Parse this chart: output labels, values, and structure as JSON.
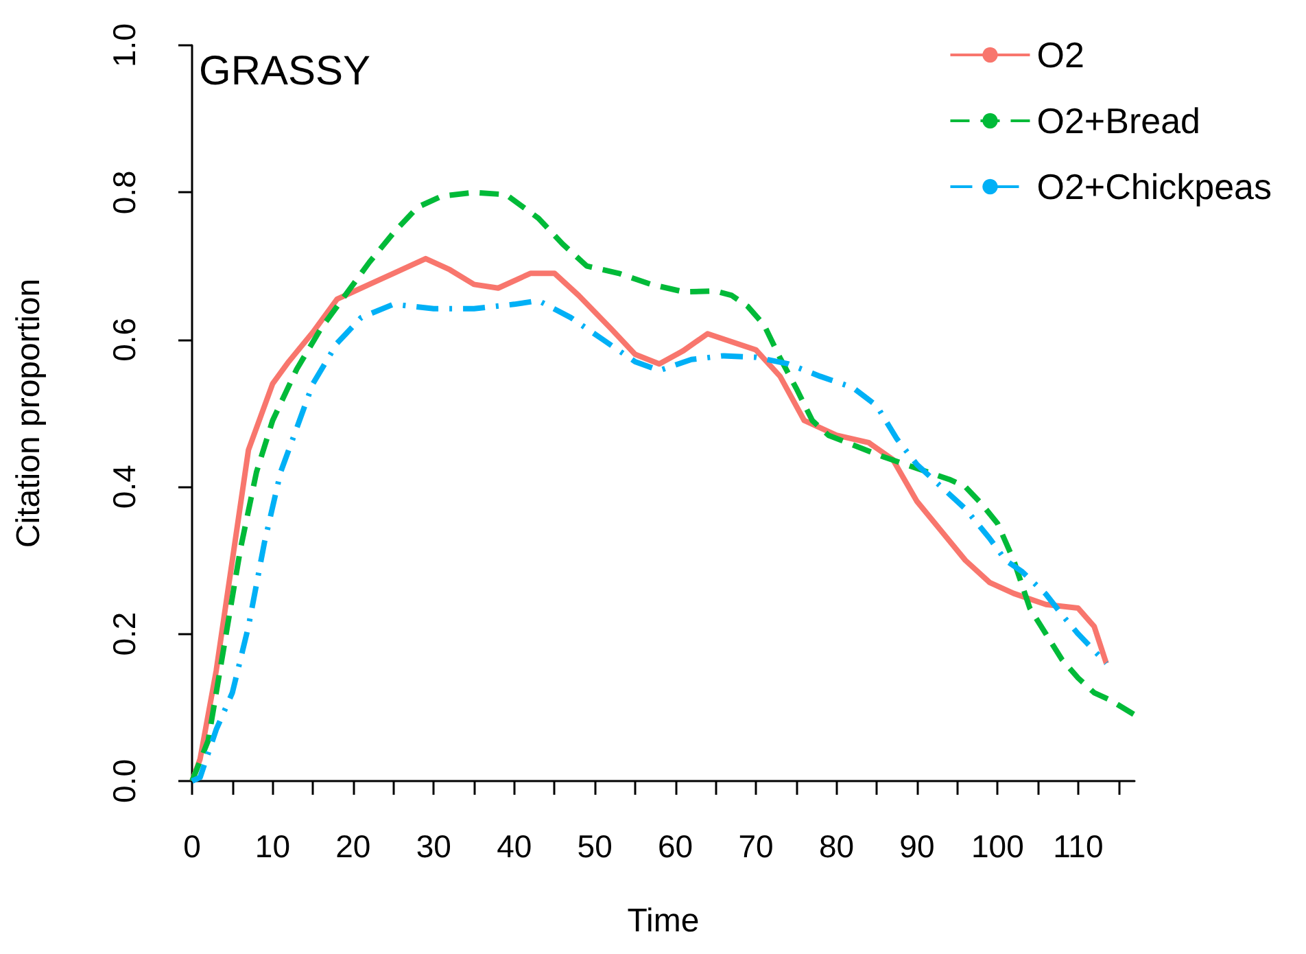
{
  "chart_data": {
    "type": "line",
    "title": "GRASSY",
    "xlabel": "Time",
    "ylabel": "Citation proportion",
    "xlim": [
      0,
      117
    ],
    "ylim": [
      0,
      1
    ],
    "xticks": [
      0,
      {
        "value": 5,
        "label": null
      },
      10,
      {
        "value": 15,
        "label": null
      },
      20,
      {
        "value": 25,
        "label": null
      },
      30,
      {
        "value": 35,
        "label": null
      },
      40,
      {
        "value": 45,
        "label": null
      },
      50,
      {
        "value": 55,
        "label": null
      },
      60,
      {
        "value": 65,
        "label": null
      },
      70,
      {
        "value": 75,
        "label": null
      },
      80,
      {
        "value": 85,
        "label": null
      },
      90,
      {
        "value": 95,
        "label": null
      },
      100,
      {
        "value": 105,
        "label": null
      },
      110,
      {
        "value": 115,
        "label": null
      }
    ],
    "yticks": [
      {
        "value": 0,
        "label": "0.0"
      },
      0.2,
      0.4,
      0.6,
      0.8,
      {
        "value": 1,
        "label": "1.0"
      }
    ],
    "grid": false,
    "legend": "top right",
    "marker": "none",
    "series": [
      {
        "name": "O2",
        "color": "#f8766d",
        "line_style": "solid",
        "x": [
          0,
          1,
          3,
          5,
          7,
          10,
          12,
          15,
          18,
          22,
          25,
          29,
          32,
          35,
          38,
          42,
          45,
          48,
          52,
          55,
          58,
          61,
          64,
          70,
          73,
          76,
          80,
          84,
          87,
          90,
          93,
          96,
          99,
          102,
          106,
          110,
          112,
          113.5
        ],
        "values": [
          0,
          0.03,
          0.15,
          0.3,
          0.45,
          0.54,
          0.57,
          0.61,
          0.655,
          0.675,
          0.69,
          0.71,
          0.695,
          0.675,
          0.67,
          0.69,
          0.69,
          0.66,
          0.615,
          0.58,
          0.567,
          0.585,
          0.608,
          0.586,
          0.55,
          0.49,
          0.47,
          0.46,
          0.437,
          0.38,
          0.34,
          0.3,
          0.27,
          0.255,
          0.24,
          0.235,
          0.21,
          0.16
        ]
      },
      {
        "name": "O2+Bread",
        "color": "#00ba38",
        "line_style": "dashed",
        "x": [
          0,
          2,
          4,
          6,
          8,
          10,
          13,
          16,
          19,
          22,
          25,
          28,
          31,
          35,
          39,
          43,
          46,
          49,
          53,
          57,
          61,
          65,
          67,
          69,
          71,
          73,
          75,
          77,
          79,
          82,
          86,
          90,
          94,
          96,
          98,
          100,
          102,
          104,
          106,
          108,
          110,
          112,
          114,
          117
        ],
        "values": [
          0,
          0.055,
          0.185,
          0.315,
          0.42,
          0.49,
          0.56,
          0.615,
          0.66,
          0.705,
          0.745,
          0.78,
          0.795,
          0.8,
          0.797,
          0.765,
          0.73,
          0.7,
          0.69,
          0.675,
          0.665,
          0.666,
          0.66,
          0.645,
          0.62,
          0.575,
          0.534,
          0.49,
          0.47,
          0.457,
          0.44,
          0.425,
          0.41,
          0.4,
          0.377,
          0.35,
          0.3,
          0.235,
          0.2,
          0.165,
          0.14,
          0.12,
          0.11,
          0.09
        ]
      },
      {
        "name": "O2+Chickpeas",
        "color": "#00b0f6",
        "line_style": "dashdot",
        "x": [
          0,
          1,
          3,
          5,
          7,
          9,
          11,
          13,
          15,
          18,
          21,
          25,
          30,
          35,
          40,
          43,
          47,
          51,
          55,
          58,
          62,
          66,
          70,
          74,
          78,
          82,
          85,
          87.5,
          90,
          93,
          96,
          99,
          101,
          103,
          106,
          108,
          110,
          113.5
        ],
        "values": [
          0,
          0.005,
          0.07,
          0.12,
          0.21,
          0.325,
          0.42,
          0.48,
          0.54,
          0.595,
          0.63,
          0.648,
          0.642,
          0.642,
          0.648,
          0.653,
          0.63,
          0.6,
          0.57,
          0.558,
          0.573,
          0.578,
          0.576,
          0.567,
          0.55,
          0.535,
          0.51,
          0.465,
          0.43,
          0.4,
          0.37,
          0.33,
          0.3,
          0.285,
          0.254,
          0.226,
          0.2,
          0.16
        ]
      }
    ]
  }
}
